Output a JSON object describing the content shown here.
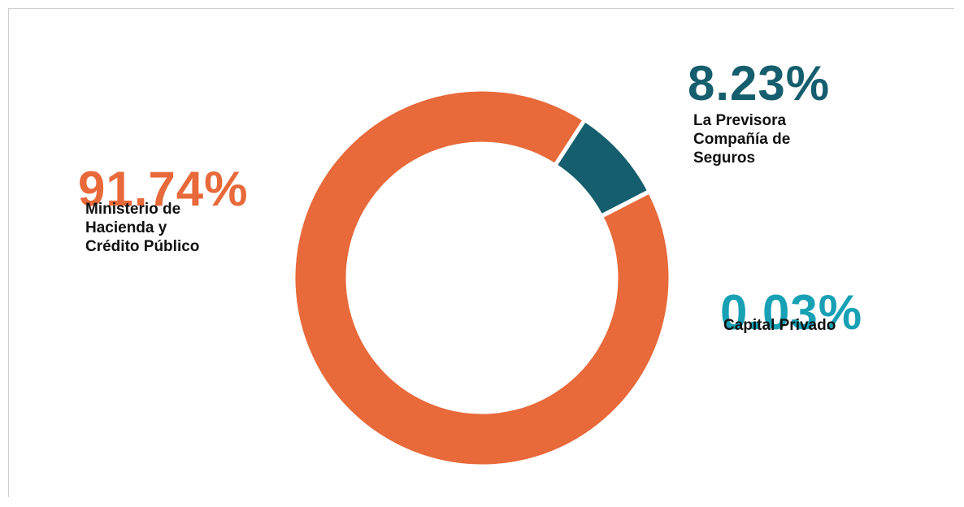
{
  "chart_data": {
    "type": "pie",
    "categories": [
      "La Previsora Compañía de Seguros",
      "Capital Privado",
      "Ministerio de Hacienda y Crédito Público"
    ],
    "values": [
      8.23,
      0.03,
      91.74
    ],
    "value_labels": [
      "8.23%",
      "0.03%",
      "91.74%"
    ],
    "colors": [
      "#155e6e",
      "#18a0b4",
      "#e8693a"
    ]
  }
}
